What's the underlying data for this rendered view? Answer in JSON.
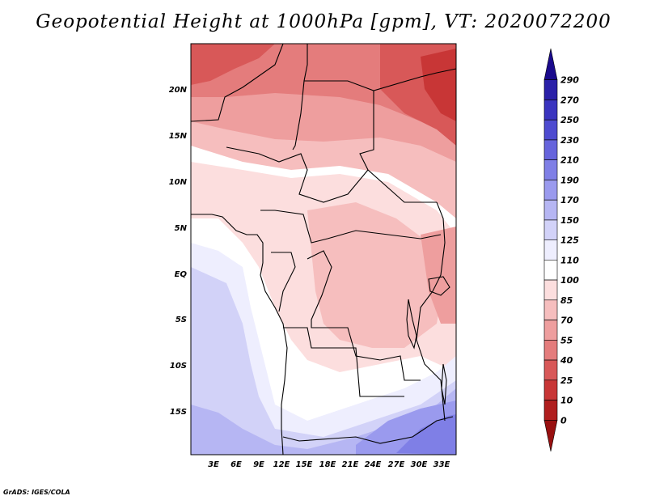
{
  "title": "Geopotential Height at 1000hPa [gpm], VT: 2020072200",
  "credit": "GrADS: IGES/COLA",
  "map": {
    "lat_labels": [
      "20N",
      "15N",
      "10N",
      "5N",
      "EQ",
      "5S",
      "10S",
      "15S"
    ],
    "lon_labels": [
      "3E",
      "6E",
      "9E",
      "12E",
      "15E",
      "18E",
      "21E",
      "24E",
      "27E",
      "30E",
      "33E"
    ]
  },
  "colorbar": {
    "levels": [
      "290",
      "270",
      "250",
      "230",
      "210",
      "190",
      "170",
      "150",
      "125",
      "110",
      "100",
      "85",
      "70",
      "55",
      "40",
      "25",
      "10",
      "0"
    ],
    "colors_top_to_bottom": [
      "#1a0a8c",
      "#2a20a8",
      "#3a34bf",
      "#4e4bd0",
      "#6664dc",
      "#7f7fe6",
      "#9a9aee",
      "#b6b6f3",
      "#d2d2f8",
      "#eeeefe",
      "#ffffff",
      "#fcdede",
      "#f6bebe",
      "#ee9e9e",
      "#e47c7c",
      "#d85858",
      "#c83636",
      "#b01e1e",
      "#981010"
    ]
  }
}
